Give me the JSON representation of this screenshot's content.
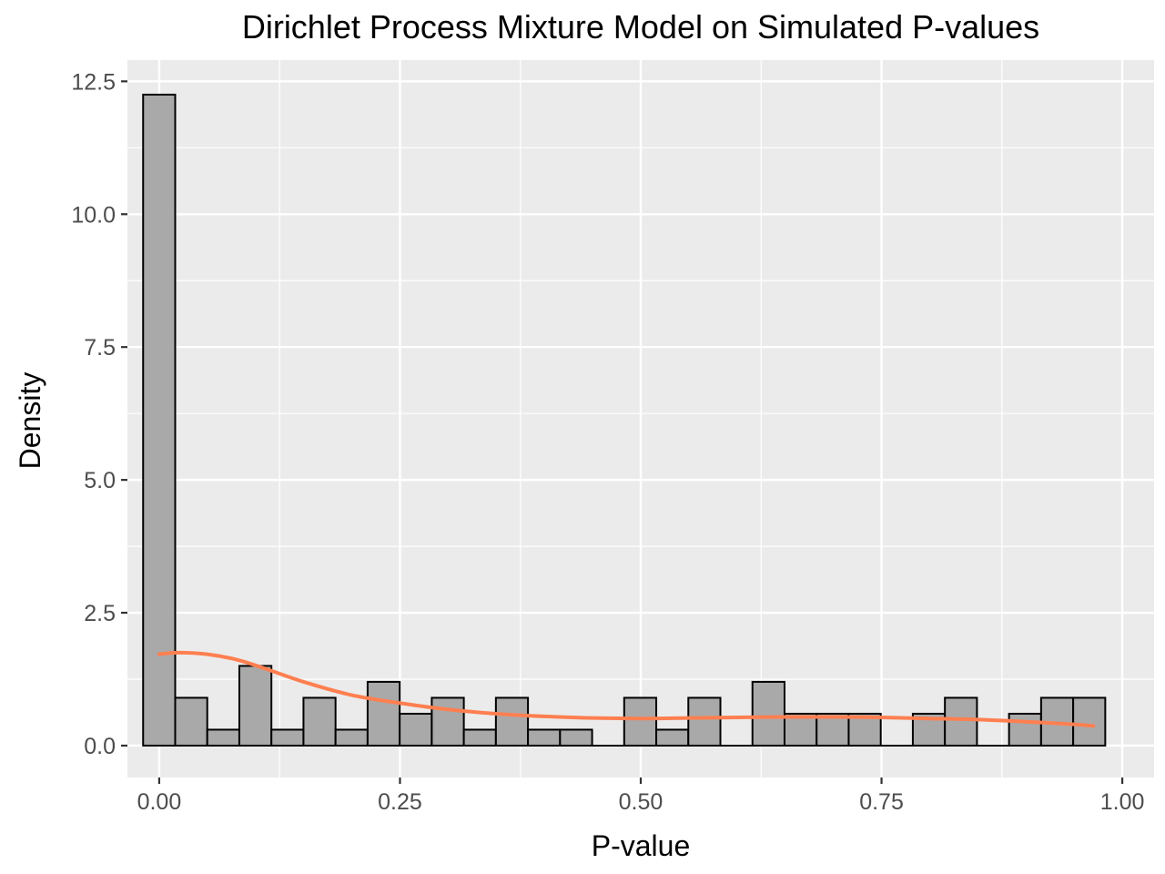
{
  "chart_data": {
    "type": "bar",
    "title": "Dirichlet Process Mixture Model on Simulated P-values",
    "xlabel": "P-value",
    "ylabel": "Density",
    "xlim": [
      -0.033,
      1.033
    ],
    "ylim": [
      -0.6,
      12.9
    ],
    "x_ticks": [
      0.0,
      0.25,
      0.5,
      0.75,
      1.0
    ],
    "x_tick_labels": [
      "0.00",
      "0.25",
      "0.50",
      "0.75",
      "1.00"
    ],
    "y_ticks": [
      0.0,
      2.5,
      5.0,
      7.5,
      10.0,
      12.5
    ],
    "y_tick_labels": [
      "0.0",
      "2.5",
      "5.0",
      "7.5",
      "10.0",
      "12.5"
    ],
    "grid": true,
    "bin_width": 0.0333,
    "bins_start": -0.0167,
    "values": [
      12.25,
      0.9,
      0.3,
      1.5,
      0.3,
      0.9,
      0.3,
      1.2,
      0.6,
      0.9,
      0.3,
      0.9,
      0.3,
      0.3,
      0.0,
      0.9,
      0.3,
      0.9,
      0.0,
      1.2,
      0.6,
      0.6,
      0.6,
      0.0,
      0.6,
      0.9,
      0.0,
      0.6,
      0.9,
      0.9
    ],
    "density_curve": {
      "color": "#FF7F50",
      "x": [
        0.0,
        0.02,
        0.05,
        0.08,
        0.11,
        0.15,
        0.2,
        0.25,
        0.3,
        0.35,
        0.4,
        0.45,
        0.5,
        0.55,
        0.6,
        0.65,
        0.7,
        0.75,
        0.8,
        0.85,
        0.9,
        0.95,
        0.97
      ],
      "y": [
        1.72,
        1.75,
        1.72,
        1.62,
        1.45,
        1.2,
        0.95,
        0.8,
        0.68,
        0.6,
        0.55,
        0.52,
        0.51,
        0.52,
        0.53,
        0.54,
        0.54,
        0.53,
        0.51,
        0.49,
        0.45,
        0.4,
        0.37
      ]
    },
    "colors": {
      "panel": "#EBEBEB",
      "grid": "#FFFFFF",
      "bar_fill": "#A9A9A9",
      "bar_stroke": "#000000"
    }
  }
}
